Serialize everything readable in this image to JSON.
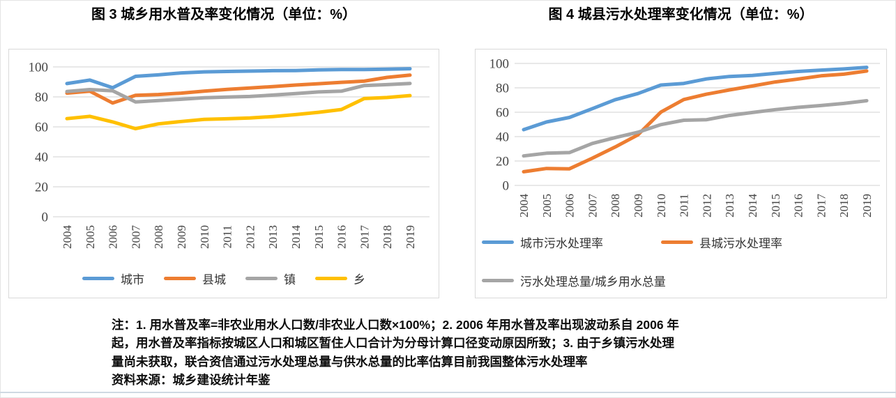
{
  "figures": [
    {
      "title": "图 3  城乡用水普及率变化情况（单位：%）"
    },
    {
      "title": "图 4  城县污水处理率变化情况（单位：%）"
    }
  ],
  "notes": {
    "lines": [
      "注：1. 用水普及率=非农业用水人口数/非农业人口数×100%；2. 2006 年用水普及率出现波动系自 2006 年",
      "起，用水普及率指标按城区人口和城区暂住人口合计为分母计算口径变动原因所致；3. 由于乡镇污水处理",
      "量尚未获取，联合资信通过污水处理总量与供水总量的比率估算目前我国整体污水处理率",
      "资料来源：城乡建设统计年鉴"
    ]
  },
  "colors": {
    "blue": "#5B9BD5",
    "orange": "#ED7D31",
    "gray": "#A5A5A5",
    "yellow": "#FFC000",
    "gridline": "#D9D9D9"
  },
  "chart_data": [
    {
      "type": "line",
      "title": "图 3  城乡用水普及率变化情况（单位：%）",
      "categories": [
        "2004",
        "2005",
        "2006",
        "2007",
        "2008",
        "2009",
        "2010",
        "2011",
        "2012",
        "2013",
        "2014",
        "2015",
        "2016",
        "2017",
        "2018",
        "2019"
      ],
      "ylim": [
        0,
        100
      ],
      "yticks": [
        0,
        20,
        40,
        60,
        80,
        100
      ],
      "grid": true,
      "legend_position": "bottom",
      "series": [
        {
          "name": "城市",
          "color": "#5B9BD5",
          "values": [
            88.9,
            91.2,
            86.1,
            93.7,
            94.7,
            96.0,
            96.7,
            97.0,
            97.2,
            97.5,
            97.6,
            98.0,
            98.3,
            98.3,
            98.5,
            98.8
          ]
        },
        {
          "name": "县城",
          "color": "#ED7D31",
          "values": [
            82.5,
            83.8,
            75.9,
            81.0,
            81.6,
            82.5,
            83.8,
            85.0,
            85.9,
            86.9,
            87.9,
            88.8,
            89.7,
            90.5,
            93.0,
            94.5
          ]
        },
        {
          "name": "镇",
          "color": "#A5A5A5",
          "values": [
            83.6,
            84.9,
            84.1,
            76.6,
            77.6,
            78.4,
            79.4,
            79.9,
            80.3,
            81.2,
            82.2,
            83.3,
            83.8,
            87.6,
            88.2,
            89.0
          ]
        },
        {
          "name": "乡",
          "color": "#FFC000",
          "values": [
            65.5,
            67.0,
            63.3,
            58.8,
            62.0,
            63.6,
            65.0,
            65.4,
            65.9,
            66.9,
            68.2,
            69.7,
            71.6,
            78.9,
            79.6,
            80.9
          ]
        }
      ]
    },
    {
      "type": "line",
      "title": "图 4  城县污水处理率变化情况（单位：%）",
      "categories": [
        "2004",
        "2005",
        "2006",
        "2007",
        "2008",
        "2009",
        "2010",
        "2011",
        "2012",
        "2013",
        "2014",
        "2015",
        "2016",
        "2017",
        "2018",
        "2019"
      ],
      "ylim": [
        0,
        100
      ],
      "yticks": [
        0,
        20,
        40,
        60,
        80,
        100
      ],
      "grid": true,
      "legend_position": "bottom",
      "series": [
        {
          "name": "城市污水处理率",
          "color": "#5B9BD5",
          "values": [
            45.7,
            52.0,
            55.7,
            62.9,
            70.2,
            75.3,
            82.3,
            83.6,
            87.3,
            89.3,
            90.2,
            91.9,
            93.4,
            94.5,
            95.5,
            96.8
          ]
        },
        {
          "name": "县城污水处理率",
          "color": "#ED7D31",
          "values": [
            11.2,
            13.9,
            13.6,
            22.3,
            31.5,
            41.5,
            60.1,
            70.4,
            74.8,
            78.3,
            81.5,
            84.8,
            87.2,
            89.8,
            91.2,
            93.8
          ]
        },
        {
          "name": "污水处理总量/城乡用水总量",
          "color": "#A5A5A5",
          "values": [
            24.2,
            26.4,
            26.9,
            34.4,
            39.2,
            43.6,
            49.8,
            53.4,
            53.9,
            57.4,
            59.8,
            62.1,
            64.0,
            65.5,
            67.2,
            69.4
          ]
        }
      ]
    }
  ]
}
